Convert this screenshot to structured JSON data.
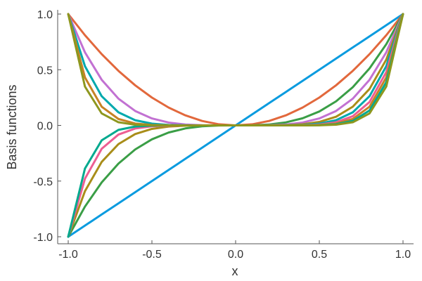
{
  "chart_data": {
    "type": "line",
    "title": "",
    "xlabel": "x",
    "ylabel": "Basis functions",
    "xlim": [
      -1.0,
      1.0
    ],
    "ylim": [
      -1.0,
      1.0
    ],
    "xticks": [
      "-1.0",
      "-0.5",
      "0.0",
      "0.5",
      "1.0"
    ],
    "yticks": [
      "-1.0",
      "-0.5",
      "0.0",
      "0.5",
      "1.0"
    ],
    "grid": false,
    "legend": "none",
    "x": [
      -1.0,
      -0.9,
      -0.8,
      -0.7,
      -0.6,
      -0.5,
      -0.4,
      -0.3,
      -0.2,
      -0.1,
      0.0,
      0.1,
      0.2,
      0.3,
      0.4,
      0.5,
      0.6,
      0.7,
      0.8,
      0.9,
      1.0
    ],
    "series": [
      {
        "color": "#0a9bdf",
        "values": [
          -1.0,
          -0.9,
          -0.8,
          -0.7,
          -0.6,
          -0.5,
          -0.4,
          -0.3,
          -0.2,
          -0.1,
          0.0,
          0.1,
          0.2,
          0.3,
          0.4,
          0.5,
          0.6,
          0.7,
          0.8,
          0.9,
          1.0
        ]
      },
      {
        "color": "#e2683c",
        "values": [
          1.0,
          0.81,
          0.64,
          0.49,
          0.36,
          0.25,
          0.16,
          0.09,
          0.04,
          0.01,
          0.0,
          0.01,
          0.04,
          0.09,
          0.16,
          0.25,
          0.36,
          0.49,
          0.64,
          0.81,
          1.0
        ]
      },
      {
        "color": "#3a9e46",
        "values": [
          -1.0,
          -0.729,
          -0.512,
          -0.343,
          -0.216,
          -0.125,
          -0.064,
          -0.027,
          -0.008,
          -0.001,
          0.0,
          0.001,
          0.008,
          0.027,
          0.064,
          0.125,
          0.216,
          0.343,
          0.512,
          0.729,
          1.0
        ]
      },
      {
        "color": "#c271d2",
        "values": [
          1.0,
          0.6561,
          0.4096,
          0.2401,
          0.1296,
          0.0625,
          0.0256,
          0.0081,
          0.0016,
          0.0001,
          0.0,
          0.0001,
          0.0016,
          0.0081,
          0.0256,
          0.0625,
          0.1296,
          0.2401,
          0.4096,
          0.6561,
          1.0
        ]
      },
      {
        "color": "#a98d19",
        "values": [
          -1.0,
          -0.5905,
          -0.3277,
          -0.1681,
          -0.0778,
          -0.0313,
          -0.0102,
          -0.0024,
          -0.0003,
          0.0,
          0.0,
          0.0,
          0.0003,
          0.0024,
          0.0102,
          0.0313,
          0.0778,
          0.1681,
          0.3277,
          0.5905,
          1.0
        ]
      },
      {
        "color": "#00a9ad",
        "values": [
          1.0,
          0.5314,
          0.2621,
          0.1176,
          0.0467,
          0.0156,
          0.0041,
          0.0007,
          0.0001,
          0.0,
          0.0,
          0.0,
          0.0001,
          0.0007,
          0.0041,
          0.0156,
          0.0467,
          0.1176,
          0.2621,
          0.5314,
          1.0
        ]
      },
      {
        "color": "#ed5e93",
        "values": [
          -1.0,
          -0.4783,
          -0.2097,
          -0.0824,
          -0.028,
          -0.0078,
          -0.0016,
          -0.0002,
          0.0,
          0.0,
          0.0,
          0.0,
          0.0,
          0.0002,
          0.0016,
          0.0078,
          0.028,
          0.0824,
          0.2097,
          0.4783,
          1.0
        ]
      },
      {
        "color": "#c68225",
        "values": [
          1.0,
          0.4305,
          0.1678,
          0.0576,
          0.0168,
          0.0039,
          0.0007,
          0.0001,
          0.0,
          0.0,
          0.0,
          0.0,
          0.0,
          0.0001,
          0.0007,
          0.0039,
          0.0168,
          0.0576,
          0.1678,
          0.4305,
          1.0
        ]
      },
      {
        "color": "#00a98e",
        "values": [
          -1.0,
          -0.3874,
          -0.1342,
          -0.0404,
          -0.0101,
          -0.002,
          -0.0003,
          0.0,
          0.0,
          0.0,
          0.0,
          0.0,
          0.0,
          0.0,
          0.0003,
          0.002,
          0.0101,
          0.0404,
          0.1342,
          0.3874,
          1.0
        ]
      },
      {
        "color": "#8e971e",
        "values": [
          1.0,
          0.3487,
          0.1074,
          0.0282,
          0.006,
          0.001,
          0.0001,
          0.0,
          0.0,
          0.0,
          0.0,
          0.0,
          0.0,
          0.0,
          0.0001,
          0.001,
          0.006,
          0.0282,
          0.1074,
          0.3487,
          1.0
        ]
      }
    ]
  }
}
